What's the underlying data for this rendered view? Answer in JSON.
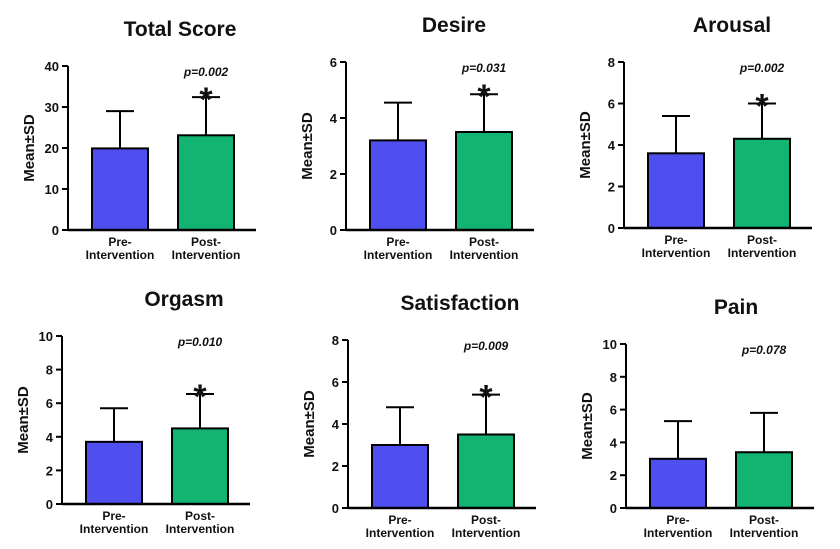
{
  "chart_data": [
    {
      "type": "bar",
      "title": "Total Score",
      "ylabel": "Mean±SD",
      "ylim": [
        0,
        40
      ],
      "yticks": [
        0,
        10,
        20,
        30,
        40
      ],
      "categories": [
        "Pre-\nIntervention",
        "Post-\nIntervention"
      ],
      "values": [
        19.9,
        23.1
      ],
      "sd": [
        9.1,
        9.3
      ],
      "colors": [
        "#4f4ff0",
        "#13b371"
      ],
      "p_value": "p=0.002",
      "significant": "*"
    },
    {
      "type": "bar",
      "title": "Desire",
      "ylabel": "Mean±SD",
      "ylim": [
        0,
        6
      ],
      "yticks": [
        0,
        2,
        4,
        6
      ],
      "categories": [
        "Pre-\nIntervention",
        "Post-\nIntervention"
      ],
      "values": [
        3.2,
        3.5
      ],
      "sd": [
        1.35,
        1.35
      ],
      "colors": [
        "#4f4ff0",
        "#13b371"
      ],
      "p_value": "p=0.031",
      "significant": "*"
    },
    {
      "type": "bar",
      "title": "Arousal",
      "ylabel": "Mean±SD",
      "ylim": [
        0,
        8
      ],
      "yticks": [
        0,
        2,
        4,
        6,
        8
      ],
      "categories": [
        "Pre-\nIntervention",
        "Post-\nIntervention"
      ],
      "values": [
        3.6,
        4.3
      ],
      "sd": [
        1.8,
        1.7
      ],
      "colors": [
        "#4f4ff0",
        "#13b371"
      ],
      "p_value": "p=0.002",
      "significant": "*"
    },
    {
      "type": "bar",
      "title": "Orgasm",
      "ylabel": "Mean±SD",
      "ylim": [
        0,
        10
      ],
      "yticks": [
        0,
        2,
        4,
        6,
        8,
        10
      ],
      "categories": [
        "Pre-\nIntervention",
        "Post-\nIntervention"
      ],
      "values": [
        3.7,
        4.5
      ],
      "sd": [
        2.0,
        2.05
      ],
      "colors": [
        "#4f4ff0",
        "#13b371"
      ],
      "p_value": "p=0.010",
      "significant": "*"
    },
    {
      "type": "bar",
      "title": "Satisfaction",
      "ylabel": "Mean±SD",
      "ylim": [
        0,
        8
      ],
      "yticks": [
        0,
        2,
        4,
        6,
        8
      ],
      "categories": [
        "Pre-\nIntervention",
        "Post-\nIntervention"
      ],
      "values": [
        3.0,
        3.5
      ],
      "sd": [
        1.8,
        1.9
      ],
      "colors": [
        "#4f4ff0",
        "#13b371"
      ],
      "p_value": "p=0.009",
      "significant": "*"
    },
    {
      "type": "bar",
      "title": "Pain",
      "ylabel": "Mean±SD",
      "ylim": [
        0,
        10
      ],
      "yticks": [
        0,
        2,
        4,
        6,
        8,
        10
      ],
      "categories": [
        "Pre-\nIntervention",
        "Post-\nIntervention"
      ],
      "values": [
        3.0,
        3.4
      ],
      "sd": [
        2.3,
        2.4
      ],
      "colors": [
        "#4f4ff0",
        "#13b371"
      ],
      "p_value": "p=0.078",
      "significant": ""
    }
  ]
}
